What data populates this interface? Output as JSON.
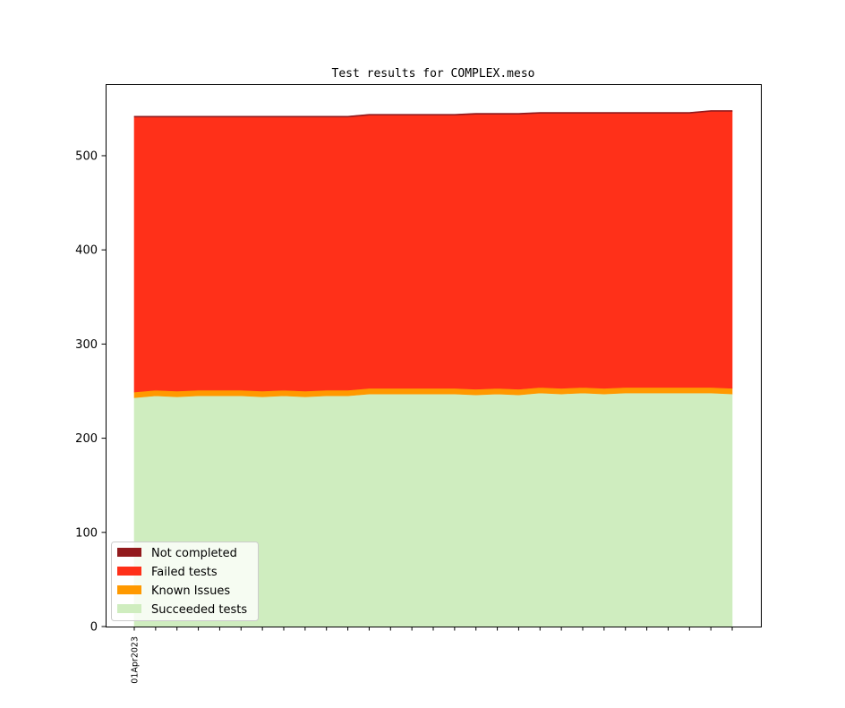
{
  "chart_data": {
    "type": "area",
    "title": "Test results for COMPLEX.meso",
    "xlabel": "",
    "ylabel": "",
    "ylim": [
      0,
      576
    ],
    "yticks": [
      0,
      100,
      200,
      300,
      400,
      500
    ],
    "x_tick_labels": [
      "01Apr2023",
      "",
      "",
      "",
      "",
      "",
      "",
      "",
      "",
      "",
      "",
      "",
      "",
      "",
      "",
      "",
      "",
      "",
      "",
      "",
      "",
      "",
      "",
      "",
      "",
      "",
      "",
      "",
      ""
    ],
    "legend_position": "lower-left",
    "grid": false,
    "series": [
      {
        "name": "Succeeded tests",
        "color": "#cfedbf",
        "values": [
          243,
          245,
          244,
          245,
          245,
          245,
          244,
          245,
          244,
          245,
          245,
          247,
          247,
          247,
          247,
          247,
          246,
          247,
          246,
          248,
          247,
          248,
          247,
          248,
          248,
          248,
          248,
          248,
          247
        ]
      },
      {
        "name": "Known Issues",
        "color": "#ff9900",
        "values": [
          6,
          6,
          6,
          6,
          6,
          6,
          6,
          6,
          6,
          6,
          6,
          6,
          6,
          6,
          6,
          6,
          6,
          6,
          6,
          6,
          6,
          6,
          6,
          6,
          6,
          6,
          6,
          6,
          6
        ]
      },
      {
        "name": "Failed tests",
        "color": "#ff3019",
        "values": [
          292,
          290,
          291,
          290,
          290,
          290,
          291,
          290,
          291,
          290,
          290,
          290,
          290,
          290,
          290,
          290,
          292,
          291,
          292,
          291,
          292,
          291,
          292,
          291,
          291,
          291,
          291,
          293,
          294
        ]
      },
      {
        "name": "Not completed",
        "color": "#921a1d",
        "values": [
          1,
          1,
          1,
          1,
          1,
          1,
          1,
          1,
          1,
          1,
          1,
          1,
          1,
          1,
          1,
          1,
          1,
          1,
          1,
          1,
          1,
          1,
          1,
          1,
          1,
          1,
          1,
          1,
          1
        ]
      }
    ],
    "legend_order": [
      "Not completed",
      "Failed tests",
      "Known Issues",
      "Succeeded tests"
    ]
  }
}
